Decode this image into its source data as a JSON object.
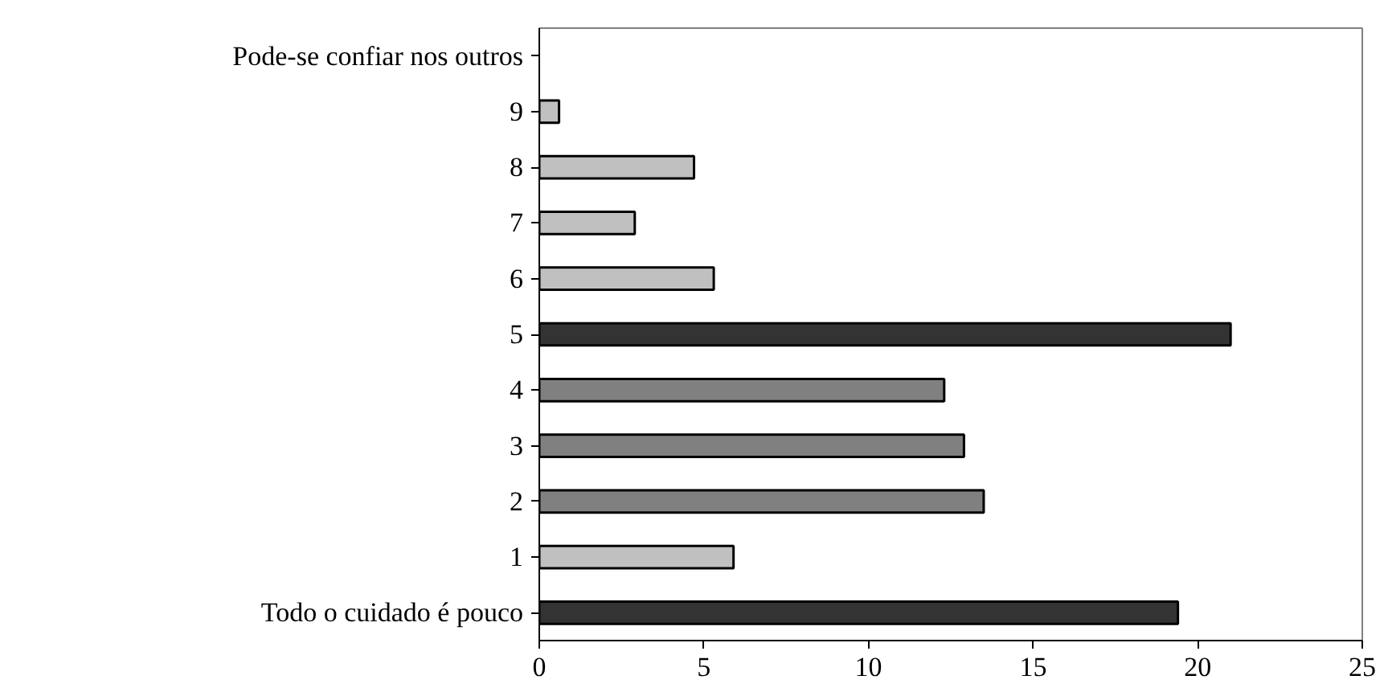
{
  "chart_data": {
    "type": "bar",
    "orientation": "horizontal",
    "categories": [
      "Pode-se confiar nos outros",
      "9",
      "8",
      "7",
      "6",
      "5",
      "4",
      "3",
      "2",
      "1",
      "Todo o cuidado é pouco"
    ],
    "values": [
      null,
      0.6,
      4.7,
      2.9,
      5.3,
      21.0,
      12.3,
      12.9,
      13.5,
      5.9,
      19.4
    ],
    "colors": [
      null,
      "#c0c0c0",
      "#c0c0c0",
      "#c0c0c0",
      "#c0c0c0",
      "#333333",
      "#808080",
      "#808080",
      "#808080",
      "#c0c0c0",
      "#333333"
    ],
    "xlim": [
      0,
      25
    ],
    "xticks": [
      0,
      5,
      10,
      15,
      20,
      25
    ],
    "grid": false
  }
}
